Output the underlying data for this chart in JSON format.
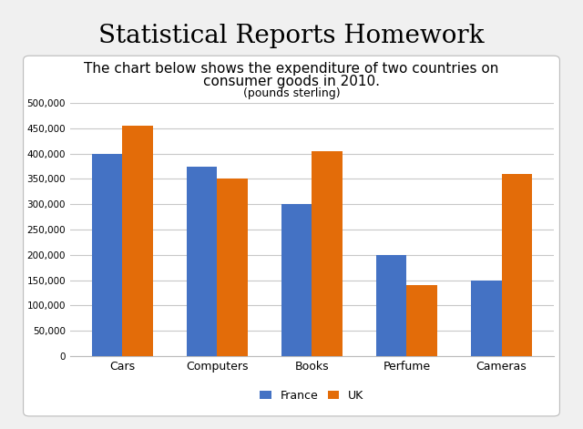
{
  "title": "Statistical Reports Homework",
  "chart_title_line1": "The chart below shows the expenditure of two countries on",
  "chart_title_line2": "consumer goods in 2010.",
  "chart_title_line3": "(pounds sterling)",
  "categories": [
    "Cars",
    "Computers",
    "Books",
    "Perfume",
    "Cameras"
  ],
  "france_values": [
    400000,
    375000,
    300000,
    200000,
    150000
  ],
  "uk_values": [
    455000,
    350000,
    405000,
    140000,
    360000
  ],
  "france_color": "#4472C4",
  "uk_color": "#E36C09",
  "ylim": [
    0,
    500000
  ],
  "yticks": [
    0,
    50000,
    100000,
    150000,
    200000,
    250000,
    300000,
    350000,
    400000,
    450000,
    500000
  ],
  "legend_labels": [
    "France",
    "UK"
  ],
  "bar_width": 0.32,
  "fig_bg_color": "#F0F0F0",
  "box_bg_color": "#FFFFFF",
  "chart_bg_color": "#FFFFFF",
  "grid_color": "#C8C8C8",
  "title_fontsize": 20,
  "chart_title_fontsize": 11,
  "chart_subtitle_fontsize": 9
}
